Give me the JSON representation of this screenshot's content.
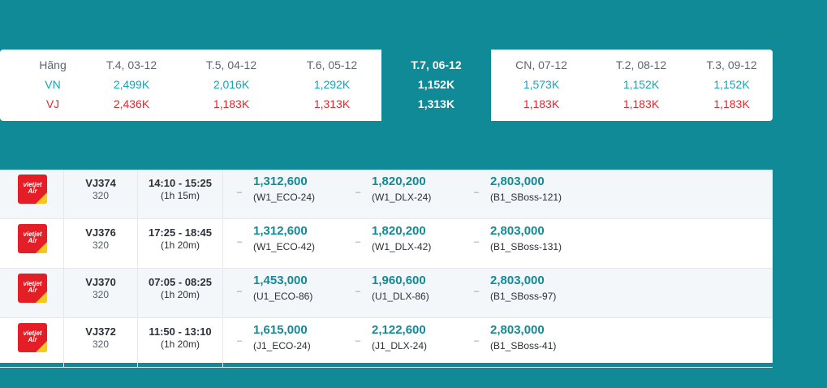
{
  "summary": {
    "airline_header": "Hãng",
    "airlines": [
      "VN",
      "VJ"
    ],
    "dates": [
      {
        "label": "T.4, 03-12",
        "vn": "2,499K",
        "vj": "2,436K",
        "selected": false
      },
      {
        "label": "T.5, 04-12",
        "vn": "2,016K",
        "vj": "1,183K",
        "selected": false
      },
      {
        "label": "T.6, 05-12",
        "vn": "1,292K",
        "vj": "1,313K",
        "selected": false
      },
      {
        "label": "T.7, 06-12",
        "vn": "1,152K",
        "vj": "1,313K",
        "selected": true
      },
      {
        "label": "CN, 07-12",
        "vn": "1,573K",
        "vj": "1,183K",
        "selected": false
      },
      {
        "label": "T.2, 08-12",
        "vn": "1,152K",
        "vj": "1,183K",
        "selected": false
      },
      {
        "label": "T.3, 09-12",
        "vn": "1,152K",
        "vj": "1,183K",
        "selected": false
      }
    ]
  },
  "colors": {
    "background": "#0f8a96",
    "vn": "#1aa3b2",
    "vj": "#e0282e",
    "price": "#138a96",
    "vietjet_red": "#e41e26",
    "vietjet_yellow": "#f6c81b"
  },
  "flights": [
    {
      "logo": "vietjet Air",
      "flight_no": "VJ374",
      "aircraft": "320",
      "time": "14:10 - 15:25",
      "duration": "(1h 15m)",
      "fares": [
        {
          "dash": "–",
          "price": "1,312,600",
          "code": "(W1_ECO-24)"
        },
        {
          "dash": "–",
          "price": "1,820,200",
          "code": "(W1_DLX-24)"
        },
        {
          "dash": "–",
          "price": "2,803,000",
          "code": "(B1_SBoss-121)"
        }
      ]
    },
    {
      "logo": "vietjet Air",
      "flight_no": "VJ376",
      "aircraft": "320",
      "time": "17:25 - 18:45",
      "duration": "(1h 20m)",
      "fares": [
        {
          "dash": "–",
          "price": "1,312,600",
          "code": "(W1_ECO-42)"
        },
        {
          "dash": "–",
          "price": "1,820,200",
          "code": "(W1_DLX-42)"
        },
        {
          "dash": "–",
          "price": "2,803,000",
          "code": "(B1_SBoss-131)"
        }
      ]
    },
    {
      "logo": "vietjet Air",
      "flight_no": "VJ370",
      "aircraft": "320",
      "time": "07:05 - 08:25",
      "duration": "(1h 20m)",
      "fares": [
        {
          "dash": "–",
          "price": "1,453,000",
          "code": "(U1_ECO-86)"
        },
        {
          "dash": "–",
          "price": "1,960,600",
          "code": "(U1_DLX-86)"
        },
        {
          "dash": "–",
          "price": "2,803,000",
          "code": "(B1_SBoss-97)"
        }
      ]
    },
    {
      "logo": "vietjet Air",
      "flight_no": "VJ372",
      "aircraft": "320",
      "time": "11:50 - 13:10",
      "duration": "(1h 20m)",
      "fares": [
        {
          "dash": "–",
          "price": "1,615,000",
          "code": "(J1_ECO-24)"
        },
        {
          "dash": "–",
          "price": "2,122,600",
          "code": "(J1_DLX-24)"
        },
        {
          "dash": "–",
          "price": "2,803,000",
          "code": "(B1_SBoss-41)"
        }
      ]
    }
  ]
}
